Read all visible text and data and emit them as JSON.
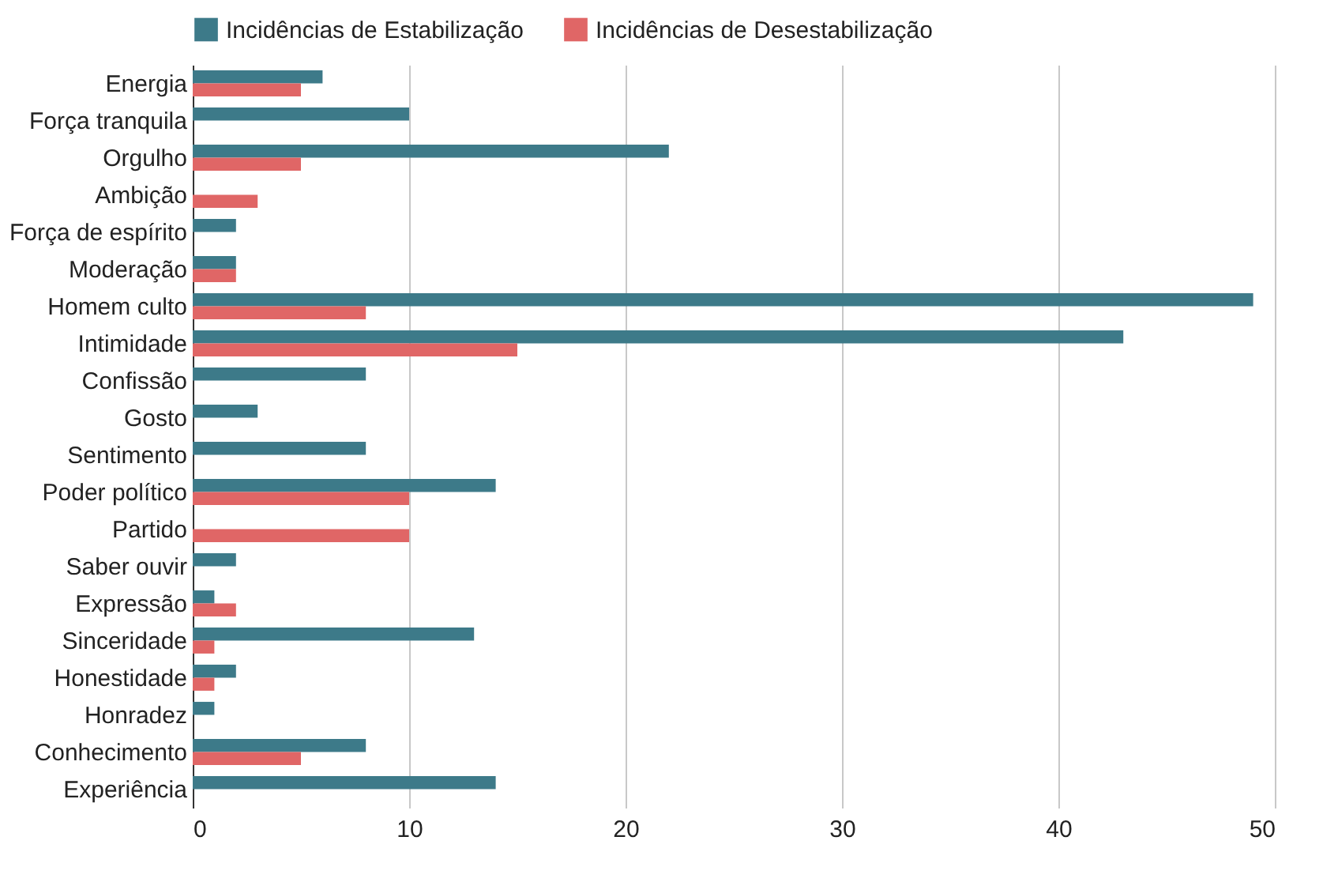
{
  "chart_data": {
    "type": "bar",
    "orientation": "horizontal",
    "categories": [
      "Energia",
      "Força tranquila",
      "Orgulho",
      "Ambição",
      "Força de espírito",
      "Moderação",
      "Homem culto",
      "Intimidade",
      "Confissão",
      "Gosto",
      "Sentimento",
      "Poder político",
      "Partido",
      "Saber ouvir",
      "Expressão",
      "Sinceridade",
      "Honestidade",
      "Honradez",
      "Conhecimento",
      "Experiência"
    ],
    "series": [
      {
        "name": "Incidências de Estabilização",
        "color": "#3d7a89",
        "values": [
          6,
          10,
          22,
          0,
          2,
          2,
          49,
          43,
          8,
          3,
          8,
          14,
          0,
          2,
          1,
          13,
          2,
          1,
          8,
          14
        ]
      },
      {
        "name": "Incidências de Desestabilização",
        "color": "#e06666",
        "values": [
          5,
          0,
          5,
          3,
          0,
          2,
          8,
          15,
          0,
          0,
          0,
          10,
          10,
          0,
          2,
          1,
          1,
          0,
          5,
          0
        ]
      }
    ],
    "xlim": [
      0,
      50
    ],
    "xticks": [
      0,
      10,
      20,
      30,
      40,
      50
    ],
    "grid": "x",
    "legend": "top"
  }
}
